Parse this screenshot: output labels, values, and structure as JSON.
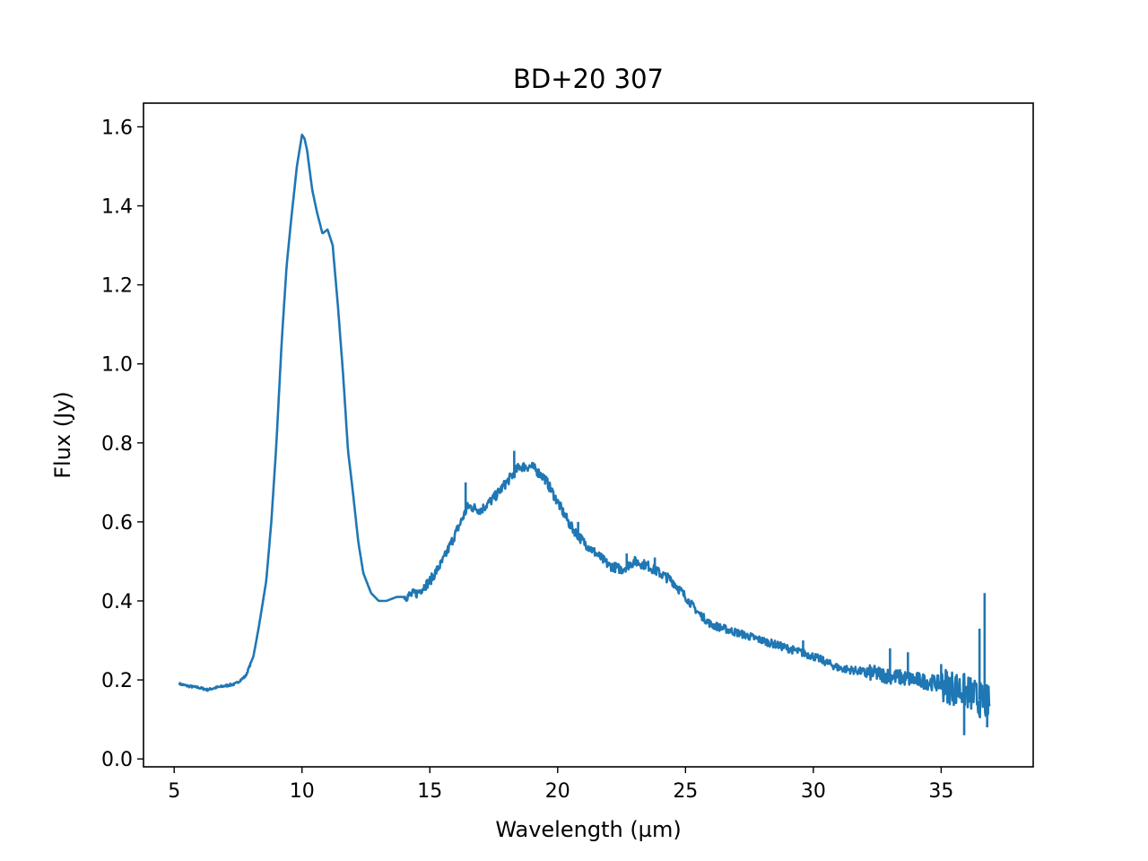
{
  "chart_data": {
    "type": "line",
    "title": "BD+20 307",
    "xlabel": "Wavelength (µm)",
    "ylabel": "Flux (Jy)",
    "xlim": [
      3.8,
      38.6
    ],
    "ylim": [
      -0.02,
      1.66
    ],
    "xticks": [
      5,
      10,
      15,
      20,
      25,
      30,
      35
    ],
    "yticks": [
      0.0,
      0.2,
      0.4,
      0.6,
      0.8,
      1.0,
      1.2,
      1.4,
      1.6
    ],
    "ytick_labels": [
      "0.0",
      "0.2",
      "0.4",
      "0.6",
      "0.8",
      "1.0",
      "1.2",
      "1.4",
      "1.6"
    ],
    "grid": false,
    "legend": "none",
    "colors": {
      "series": "#1f77b4",
      "axes": "#000000",
      "background": "#ffffff"
    },
    "series": [
      {
        "x": [
          5.2,
          5.5,
          6.0,
          6.3,
          6.6,
          7.0,
          7.4,
          7.8,
          8.1,
          8.3,
          8.6,
          8.8,
          9.0,
          9.2,
          9.4,
          9.6,
          9.8,
          10.0,
          10.1,
          10.2,
          10.4,
          10.6,
          10.8,
          11.0,
          11.2,
          11.4,
          11.6,
          11.8,
          12.0,
          12.2,
          12.4,
          12.7,
          13.0,
          13.3,
          13.7,
          14.0,
          14.5,
          15.0,
          15.5,
          16.0,
          16.5,
          17.0,
          17.5,
          18.0,
          18.5,
          19.0,
          19.5,
          20.0,
          20.5,
          21.0,
          21.5,
          22.0,
          22.5,
          23.0,
          23.5,
          24.0,
          24.5,
          25.0,
          25.5,
          26.0,
          27.0,
          28.0,
          29.0,
          30.0,
          31.0,
          32.0,
          33.0,
          34.0,
          35.0,
          35.5,
          36.0,
          36.5,
          36.9
        ],
        "y": [
          0.19,
          0.185,
          0.18,
          0.175,
          0.18,
          0.185,
          0.19,
          0.21,
          0.26,
          0.33,
          0.45,
          0.6,
          0.8,
          1.05,
          1.25,
          1.38,
          1.5,
          1.58,
          1.57,
          1.54,
          1.44,
          1.38,
          1.33,
          1.34,
          1.3,
          1.15,
          0.98,
          0.78,
          0.67,
          0.55,
          0.47,
          0.42,
          0.4,
          0.4,
          0.41,
          0.41,
          0.42,
          0.45,
          0.5,
          0.57,
          0.64,
          0.63,
          0.66,
          0.7,
          0.74,
          0.74,
          0.71,
          0.65,
          0.59,
          0.55,
          0.52,
          0.49,
          0.48,
          0.5,
          0.49,
          0.47,
          0.45,
          0.41,
          0.37,
          0.34,
          0.32,
          0.3,
          0.28,
          0.26,
          0.23,
          0.22,
          0.21,
          0.2,
          0.19,
          0.18,
          0.17,
          0.15,
          0.14
        ]
      }
    ],
    "noise_spikes": [
      {
        "x": 16.4,
        "y": 0.7
      },
      {
        "x": 18.3,
        "y": 0.78
      },
      {
        "x": 19.0,
        "y": 0.75
      },
      {
        "x": 20.8,
        "y": 0.6
      },
      {
        "x": 21.2,
        "y": 0.54
      },
      {
        "x": 22.7,
        "y": 0.52
      },
      {
        "x": 23.8,
        "y": 0.51
      },
      {
        "x": 29.6,
        "y": 0.3
      },
      {
        "x": 33.0,
        "y": 0.28
      },
      {
        "x": 33.7,
        "y": 0.27
      },
      {
        "x": 35.0,
        "y": 0.24
      },
      {
        "x": 35.9,
        "y": 0.06
      },
      {
        "x": 36.5,
        "y": 0.33
      },
      {
        "x": 36.7,
        "y": 0.42
      },
      {
        "x": 36.8,
        "y": 0.08
      }
    ]
  }
}
